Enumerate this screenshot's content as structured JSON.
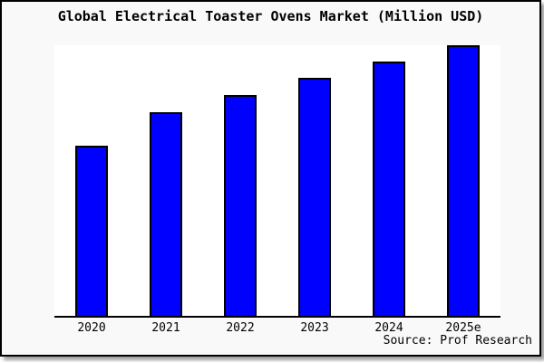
{
  "chart_data": {
    "type": "bar",
    "title": "Global Electrical Toaster Ovens Market (Million USD)",
    "categories": [
      "2020",
      "2021",
      "2022",
      "2023",
      "2024",
      "2025e"
    ],
    "values": [
      62.9,
      75.3,
      81.6,
      88.0,
      94.0,
      100.0
    ],
    "values_unit": "relative bar height, tallest = 100 (y-axis has no ticks, gridlines or value labels)",
    "xlabel": "",
    "ylabel": "",
    "ylim": [
      0,
      100
    ],
    "grid": false,
    "legend": "none",
    "source": "Source: Prof Research",
    "bar_color": "#0000ff",
    "bar_border_color": "#000000",
    "background_color": "#f9f9f9",
    "plot_background_color": "#ffffff"
  }
}
